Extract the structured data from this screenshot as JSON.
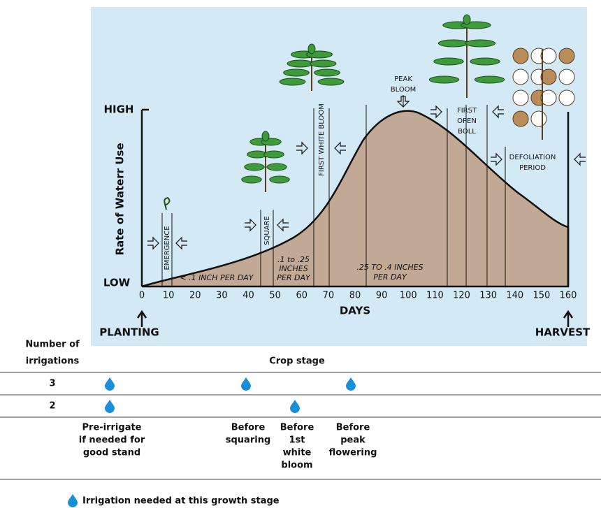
{
  "diagram": {
    "y_axis_label": "Rate of Waterr Use",
    "y_high": "HIGH",
    "y_low": "LOW",
    "x_axis_label": "DAYS",
    "x_ticks": [
      "0",
      "10",
      "20",
      "30",
      "40",
      "50",
      "60",
      "70",
      "80",
      "90",
      "100",
      "110",
      "120",
      "130",
      "140",
      "150",
      "160"
    ],
    "start": "PLANTING",
    "end": "HARVEST",
    "emergence": "EMERGENCE",
    "square": "SQUARE",
    "first_white_bloom": "FIRST WHITE BLOOM",
    "peak_bloom": [
      "PEAK",
      "BLOOM"
    ],
    "first_open_boll": [
      "FIRST",
      "OPEN",
      "BOLL"
    ],
    "defoliation": [
      "DEFOLIATION",
      "PERIOD"
    ],
    "rate_low": "< .1 INCH PER DAY",
    "rate_mid": [
      ".1 to .25",
      "INCHES",
      "PER DAY"
    ],
    "rate_high": [
      ".25 TO .4 INCHES",
      "PER DAY"
    ]
  },
  "table": {
    "row_header": [
      "Number of",
      "irrigations"
    ],
    "column_header": "Crop stage",
    "columns": [
      [
        "Pre-irrigate",
        "if needed for",
        "good stand"
      ],
      [
        "Before",
        "squaring"
      ],
      [
        "Before",
        "1st",
        "white",
        "bloom"
      ],
      [
        "Before",
        "peak",
        "flowering"
      ]
    ],
    "rows": [
      {
        "count": "3",
        "irrigated": [
          true,
          true,
          false,
          true
        ]
      },
      {
        "count": "2",
        "irrigated": [
          true,
          false,
          true,
          false
        ]
      }
    ]
  },
  "legend": "Irrigation needed at this growth stage"
}
